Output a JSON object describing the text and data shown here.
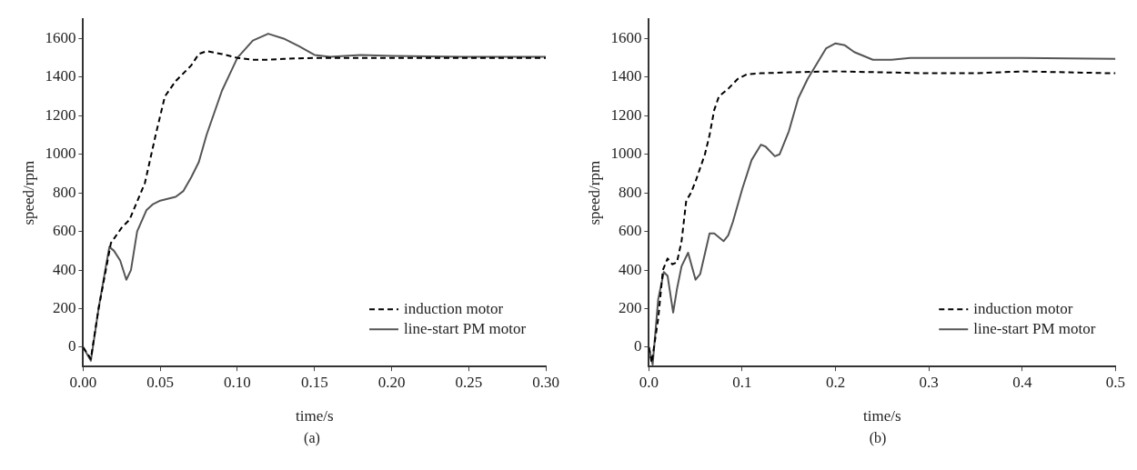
{
  "chart_data": [
    {
      "type": "line",
      "xlabel": "time/s",
      "ylabel": "speed/rpm",
      "annotations": [
        "(a)"
      ],
      "xlim": [
        0,
        0.3
      ],
      "ylim": [
        -100,
        1700
      ],
      "xticks": [
        {
          "value": 0,
          "label": "0.00"
        },
        {
          "value": 0.05,
          "label": "0.05"
        },
        {
          "value": 0.1,
          "label": "0.10"
        },
        {
          "value": 0.15,
          "label": "0.15"
        },
        {
          "value": 0.2,
          "label": "0.20"
        },
        {
          "value": 0.25,
          "label": "0.25"
        },
        {
          "value": 0.3,
          "label": "0.30"
        }
      ],
      "yticks": [
        0,
        200,
        400,
        600,
        800,
        1000,
        1200,
        1400,
        1600
      ],
      "grid": false,
      "legend": "bottom right",
      "marker": "none",
      "series": [
        {
          "name": "induction motor",
          "color": "#000000",
          "line_style": "dashed",
          "x": [
            0,
            0.005,
            0.01,
            0.018,
            0.025,
            0.03,
            0.04,
            0.047,
            0.053,
            0.06,
            0.07,
            0.075,
            0.08,
            0.09,
            0.1,
            0.11,
            0.12,
            0.13,
            0.15,
            0.2,
            0.25,
            0.3
          ],
          "values": [
            0,
            -60,
            200,
            540,
            620,
            660,
            850,
            1100,
            1300,
            1380,
            1460,
            1520,
            1535,
            1520,
            1500,
            1490,
            1490,
            1495,
            1500,
            1500,
            1500,
            1500
          ]
        },
        {
          "name": "line-start PM motor",
          "color": "#555555",
          "line_style": "solid",
          "x": [
            0,
            0.005,
            0.01,
            0.015,
            0.017,
            0.02,
            0.024,
            0.028,
            0.031,
            0.035,
            0.041,
            0.045,
            0.05,
            0.06,
            0.065,
            0.07,
            0.075,
            0.08,
            0.09,
            0.1,
            0.11,
            0.12,
            0.13,
            0.14,
            0.15,
            0.16,
            0.18,
            0.2,
            0.25,
            0.3
          ],
          "values": [
            0,
            -70,
            200,
            430,
            520,
            500,
            450,
            350,
            400,
            600,
            710,
            740,
            760,
            780,
            810,
            880,
            960,
            1100,
            1330,
            1500,
            1590,
            1625,
            1600,
            1560,
            1515,
            1505,
            1515,
            1510,
            1505,
            1505
          ]
        }
      ]
    },
    {
      "type": "line",
      "xlabel": "time/s",
      "ylabel": "speed/rpm",
      "annotations": [
        "(b)"
      ],
      "xlim": [
        0,
        0.5
      ],
      "ylim": [
        -100,
        1700
      ],
      "xticks": [
        {
          "value": 0,
          "label": "0.0"
        },
        0.1,
        0.2,
        0.3,
        0.4,
        0.5
      ],
      "yticks": [
        0,
        200,
        400,
        600,
        800,
        1000,
        1200,
        1400,
        1600
      ],
      "grid": false,
      "legend": "bottom right",
      "marker": "none",
      "series": [
        {
          "name": "induction motor",
          "color": "#000000",
          "line_style": "dashed",
          "x": [
            0,
            0.003,
            0.01,
            0.015,
            0.02,
            0.025,
            0.03,
            0.035,
            0.04,
            0.045,
            0.05,
            0.06,
            0.065,
            0.07,
            0.075,
            0.085,
            0.095,
            0.105,
            0.12,
            0.15,
            0.2,
            0.25,
            0.3,
            0.35,
            0.4,
            0.45,
            0.5
          ],
          "values": [
            0,
            -80,
            150,
            400,
            460,
            430,
            440,
            550,
            760,
            800,
            860,
            1000,
            1100,
            1230,
            1300,
            1340,
            1390,
            1415,
            1420,
            1425,
            1430,
            1425,
            1420,
            1420,
            1430,
            1425,
            1420
          ]
        },
        {
          "name": "line-start PM motor",
          "color": "#555555",
          "line_style": "solid",
          "x": [
            0,
            0.004,
            0.01,
            0.016,
            0.02,
            0.026,
            0.03,
            0.035,
            0.042,
            0.05,
            0.055,
            0.065,
            0.07,
            0.08,
            0.085,
            0.09,
            0.1,
            0.11,
            0.12,
            0.125,
            0.135,
            0.14,
            0.15,
            0.16,
            0.17,
            0.18,
            0.19,
            0.2,
            0.21,
            0.22,
            0.24,
            0.26,
            0.28,
            0.3,
            0.4,
            0.5
          ],
          "values": [
            0,
            -90,
            250,
            390,
            370,
            180,
            300,
            420,
            490,
            350,
            380,
            590,
            590,
            550,
            580,
            650,
            820,
            970,
            1050,
            1040,
            990,
            1000,
            1120,
            1290,
            1390,
            1470,
            1550,
            1575,
            1565,
            1530,
            1490,
            1490,
            1500,
            1500,
            1500,
            1495
          ]
        }
      ]
    }
  ]
}
